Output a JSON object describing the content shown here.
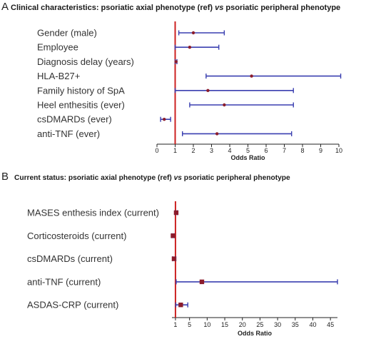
{
  "chart_data": [
    {
      "type": "forest",
      "panel_label": "A",
      "title_pre": "Clinical characteristics: psoriatic axial phenotype (ref) ",
      "title_vs": "vs",
      "title_post": " psoriatic peripheral phenotype",
      "xlabel": "Odds Ratio",
      "xlim": [
        0,
        10
      ],
      "xticks": [
        0,
        1,
        2,
        3,
        4,
        5,
        6,
        7,
        8,
        9,
        10
      ],
      "reference_line": 1,
      "rows": [
        {
          "label": "Gender (male)",
          "or": 2.0,
          "lo": 1.2,
          "hi": 3.7
        },
        {
          "label": "Employee",
          "or": 1.8,
          "lo": 1.0,
          "hi": 3.4
        },
        {
          "label": "Diagnosis delay (years)",
          "or": 1.05,
          "lo": 1.0,
          "hi": 1.1
        },
        {
          "label": "HLA-B27+",
          "or": 5.2,
          "lo": 2.7,
          "hi": 10.1
        },
        {
          "label": "Family history of SpA",
          "or": 2.8,
          "lo": 1.0,
          "hi": 7.5
        },
        {
          "label": "Heel enthesitis (ever)",
          "or": 3.7,
          "lo": 1.8,
          "hi": 7.5
        },
        {
          "label": "csDMARDs (ever)",
          "or": 0.4,
          "lo": 0.2,
          "hi": 0.75
        },
        {
          "label": "anti-TNF (ever)",
          "or": 3.3,
          "lo": 1.4,
          "hi": 7.4
        }
      ]
    },
    {
      "type": "forest",
      "panel_label": "B",
      "title_pre": "Current status: psoriatic axial phenotype (ref) ",
      "title_vs": "vs",
      "title_post": " psoriatic peripheral phenotype",
      "xlabel": "Odds Ratio",
      "xlim": [
        0,
        47
      ],
      "xticks": [
        1,
        5,
        10,
        15,
        20,
        25,
        30,
        35,
        40,
        45
      ],
      "reference_line": 1,
      "rows": [
        {
          "label": "MASES enthesis index (current)",
          "or": 1.2,
          "lo": 0.9,
          "hi": 1.6
        },
        {
          "label": "Corticosteroids (current)",
          "or": 0.3,
          "lo": 0.0,
          "hi": 0.6
        },
        {
          "label": "csDMARDs (current)",
          "or": 0.6,
          "lo": 0.2,
          "hi": 1.1
        },
        {
          "label": "anti-TNF (current)",
          "or": 8.5,
          "lo": 1.2,
          "hi": 47
        },
        {
          "label": "ASDAS-CRP (current)",
          "or": 2.5,
          "lo": 1.1,
          "hi": 4.5
        }
      ]
    }
  ],
  "colors": {
    "ci_line": "#3a3fb0",
    "point": "#8b1c2c",
    "ref_line": "#cc2222",
    "axis": "#222222"
  }
}
